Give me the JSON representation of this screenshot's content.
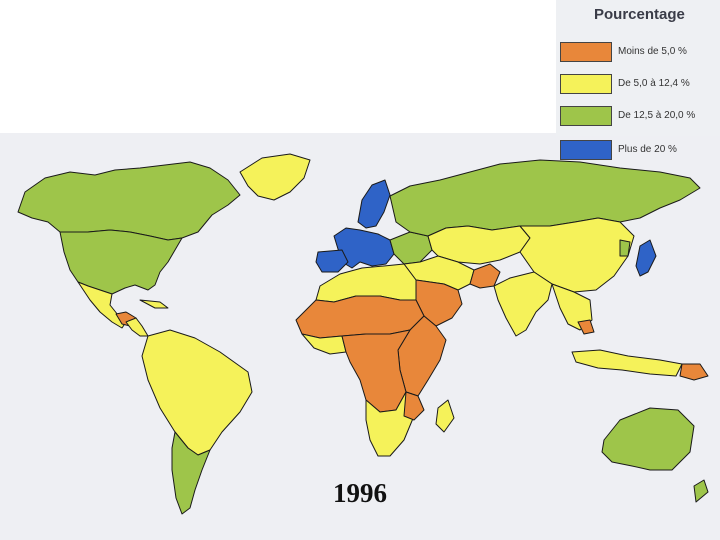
{
  "legend": {
    "title": "Pourcentage",
    "items": [
      {
        "label": "Moins de 5,0 %",
        "color": "#e8873a",
        "key": "orange"
      },
      {
        "label": "De 5,0 à 12,4 %",
        "color": "#f5f25a",
        "key": "yellow"
      },
      {
        "label": "De 12,5 à 20,0 %",
        "color": "#9ec54a",
        "key": "green"
      },
      {
        "label": "Plus de 20 %",
        "color": "#2f63c7",
        "key": "blue"
      }
    ]
  },
  "map": {
    "year": "1996",
    "regions": [
      {
        "name": "alaska-canada",
        "category": "green"
      },
      {
        "name": "greenland",
        "category": "yellow"
      },
      {
        "name": "usa",
        "category": "green"
      },
      {
        "name": "mexico",
        "category": "yellow"
      },
      {
        "name": "central-america",
        "category": "yellow"
      },
      {
        "name": "guatemala-honduras",
        "category": "orange"
      },
      {
        "name": "caribbean",
        "category": "yellow"
      },
      {
        "name": "south-america",
        "category": "yellow"
      },
      {
        "name": "argentina",
        "category": "green"
      },
      {
        "name": "uruguay",
        "category": "green"
      },
      {
        "name": "scandinavia",
        "category": "blue"
      },
      {
        "name": "iberia",
        "category": "blue"
      },
      {
        "name": "western-europe",
        "category": "blue"
      },
      {
        "name": "eastern-europe",
        "category": "green"
      },
      {
        "name": "russia",
        "category": "green"
      },
      {
        "name": "north-africa",
        "category": "yellow"
      },
      {
        "name": "sahel",
        "category": "orange"
      },
      {
        "name": "west-africa-coast",
        "category": "yellow"
      },
      {
        "name": "central-africa",
        "category": "orange"
      },
      {
        "name": "east-africa",
        "category": "orange"
      },
      {
        "name": "southern-africa",
        "category": "yellow"
      },
      {
        "name": "mozambique",
        "category": "orange"
      },
      {
        "name": "madagascar",
        "category": "yellow"
      },
      {
        "name": "middle-east",
        "category": "yellow"
      },
      {
        "name": "arabia",
        "category": "orange"
      },
      {
        "name": "afghanistan",
        "category": "orange"
      },
      {
        "name": "central-asia",
        "category": "yellow"
      },
      {
        "name": "china",
        "category": "yellow"
      },
      {
        "name": "india",
        "category": "yellow"
      },
      {
        "name": "southeast-asia",
        "category": "yellow"
      },
      {
        "name": "cambodia",
        "category": "orange"
      },
      {
        "name": "indonesia",
        "category": "yellow"
      },
      {
        "name": "papua",
        "category": "orange"
      },
      {
        "name": "japan",
        "category": "blue"
      },
      {
        "name": "korea",
        "category": "green"
      },
      {
        "name": "australia",
        "category": "green"
      },
      {
        "name": "new-zealand",
        "category": "green"
      }
    ]
  }
}
